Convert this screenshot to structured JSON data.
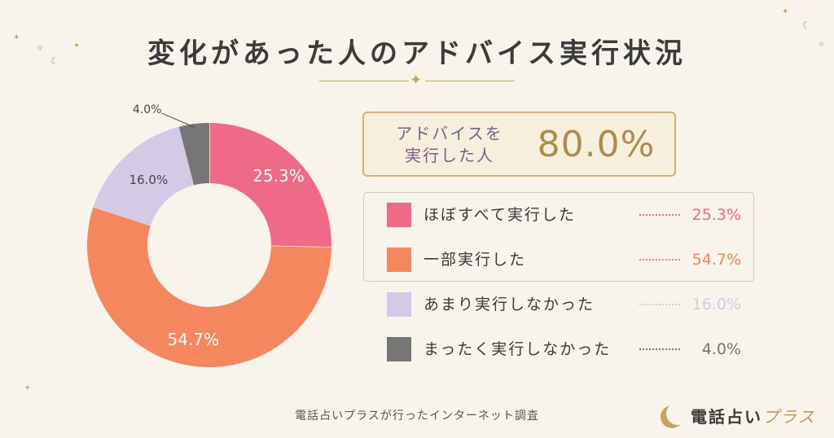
{
  "title": "変化があった人のアドバイス実行状況",
  "summary": {
    "label_line1": "アドバイスを",
    "label_line2": "実行した人",
    "value": "80.0%"
  },
  "chart_data": {
    "type": "pie",
    "variant": "donut",
    "categories": [
      "ほぼすべて実行した",
      "一部実行した",
      "あまり実行しなかった",
      "まったく実行しなかった"
    ],
    "values": [
      25.3,
      54.7,
      16.0,
      4.0
    ],
    "value_labels": [
      "25.3%",
      "54.7%",
      "16.0%",
      "4.0%"
    ],
    "colors": [
      "#ee6a86",
      "#f5875f",
      "#d5cae5",
      "#767676"
    ],
    "label_colors": [
      "#ffffff",
      "#ffffff",
      "#444444",
      "#444444"
    ],
    "start_angle": "12 o'clock",
    "direction": "clockwise",
    "legend_placement": "right"
  },
  "footer": {
    "source": "電話占いプラスが行ったインターネット調査",
    "brand_main": "電話占い",
    "brand_accent": "プラス"
  }
}
